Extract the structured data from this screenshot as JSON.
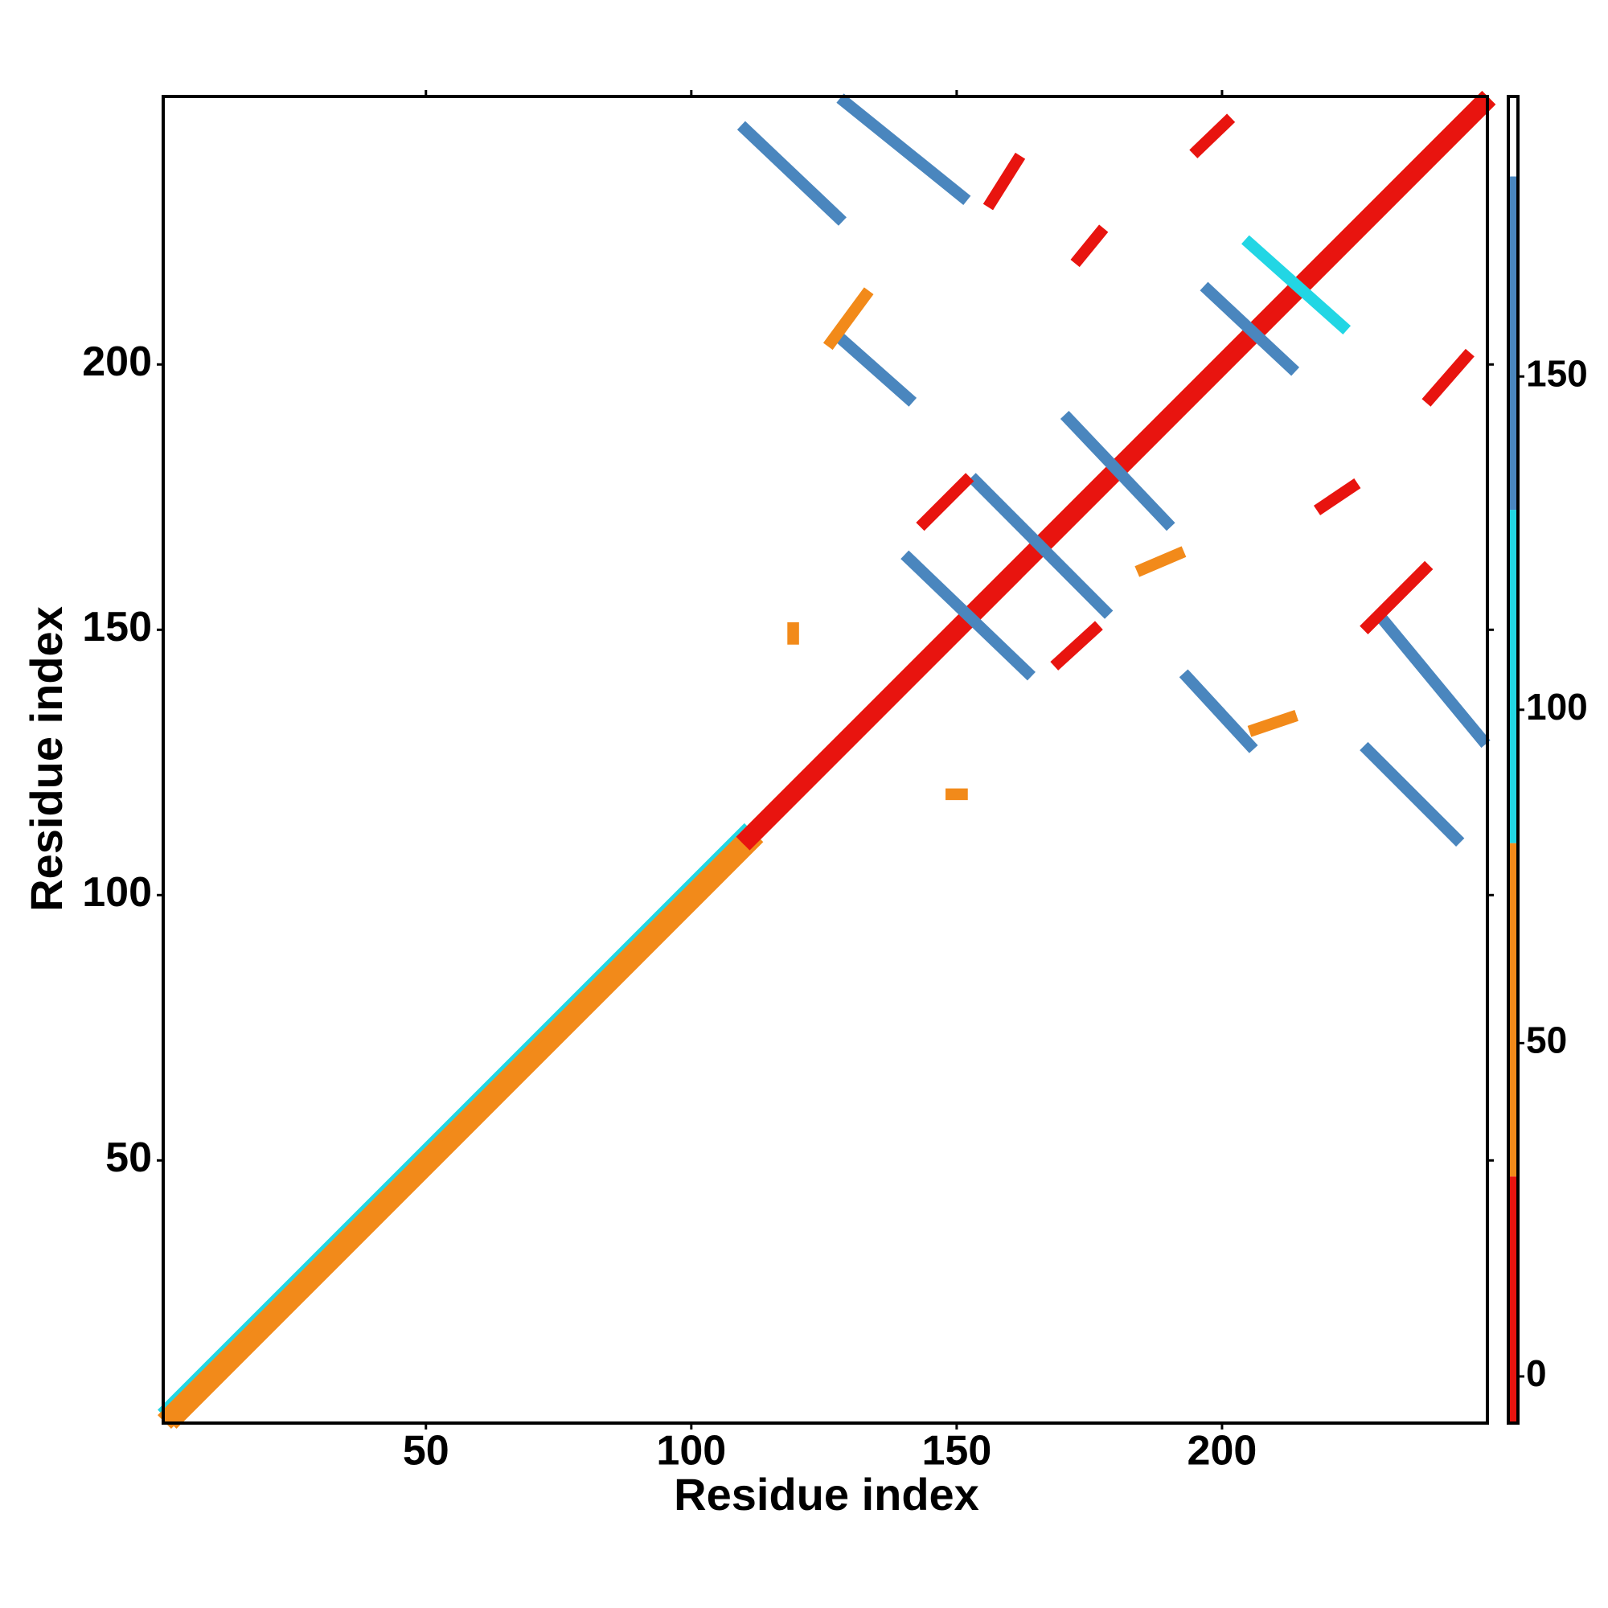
{
  "chart_data": {
    "type": "heatmap",
    "xlabel": "Residue index",
    "ylabel": "Residue index",
    "xlim": [
      0.5,
      250
    ],
    "ylim": [
      0.5,
      250.5
    ],
    "xticks": [
      50,
      100,
      150,
      200
    ],
    "yticks": [
      50,
      100,
      150,
      200
    ],
    "colorbar": {
      "lim": [
        -7,
        192
      ],
      "ticks": [
        0,
        50,
        100,
        150
      ],
      "bins": [
        {
          "from": -7,
          "to": 30,
          "color": "#e8140f"
        },
        {
          "from": 30,
          "to": 80,
          "color": "#f28a1a"
        },
        {
          "from": 80,
          "to": 130,
          "color": "#22d6e4"
        },
        {
          "from": 130,
          "to": 180,
          "color": "#4a86be"
        },
        {
          "from": 180,
          "to": 192,
          "color": "#ffffff"
        }
      ]
    },
    "segments": [
      {
        "x": [
          1,
          110
        ],
        "y": [
          3,
          112
        ],
        "value": 100
      },
      {
        "x": [
          3,
          112
        ],
        "y": [
          1,
          110
        ],
        "value": 60
      },
      {
        "x": [
          1,
          249
        ],
        "y": [
          2,
          250
        ],
        "value": 45
      },
      {
        "x": [
          2,
          250
        ],
        "y": [
          1,
          249
        ],
        "value": 45
      },
      {
        "x": [
          110,
          249
        ],
        "y": [
          111,
          250
        ],
        "value": 10
      },
      {
        "x": [
          111,
          250
        ],
        "y": [
          110,
          249
        ],
        "value": 10
      },
      {
        "x": [
          110.2,
          127.7
        ],
        "y": [
          244.3,
          227.7
        ],
        "value": 160
      },
      {
        "x": [
          128.9,
          151.1
        ],
        "y": [
          249.5,
          231.6
        ],
        "value": 160
      },
      {
        "x": [
          127.7,
          140.9
        ],
        "y": [
          205.3,
          193.6
        ],
        "value": 160
      },
      {
        "x": [
          197.4,
          213
        ],
        "y": [
          214,
          199.4
        ],
        "value": 160
      },
      {
        "x": [
          205.2,
          222.7
        ],
        "y": [
          222.8,
          207.2
        ],
        "value": 110
      },
      {
        "x": [
          171.1,
          189.6
        ],
        "y": [
          189.7,
          170.2
        ],
        "value": 160
      },
      {
        "x": [
          153.6,
          177.9
        ],
        "y": [
          178,
          153.6
        ],
        "value": 160
      },
      {
        "x": [
          141,
          163.3
        ],
        "y": [
          163.4,
          142
        ],
        "value": 160
      },
      {
        "x": [
          193.5,
          205.2
        ],
        "y": [
          141,
          128.3
        ],
        "value": 160
      },
      {
        "x": [
          230.5,
          249
        ],
        "y": [
          151.7,
          129.3
        ],
        "value": 160
      },
      {
        "x": [
          227.5,
          244.1
        ],
        "y": [
          127.3,
          110.7
        ],
        "value": 160
      },
      {
        "x": [
          195.4,
          200.9
        ],
        "y": [
          240.4,
          245.7
        ],
        "value": 15
      },
      {
        "x": [
          173,
          177
        ],
        "y": [
          219.9,
          224.8
        ],
        "value": 20
      },
      {
        "x": [
          126.4,
          132.8
        ],
        "y": [
          204.3,
          213
        ],
        "value": 45
      },
      {
        "x": [
          156.5,
          161.4
        ],
        "y": [
          230.6,
          238.4
        ],
        "value": 15
      },
      {
        "x": [
          239.2,
          246
        ],
        "y": [
          193.6,
          201.4
        ],
        "value": 20
      },
      {
        "x": [
          227.5,
          238.2
        ],
        "y": [
          150.7,
          161.4
        ],
        "value": 15
      },
      {
        "x": [
          143.9,
          151.7
        ],
        "y": [
          170.2,
          178
        ],
        "value": 15
      },
      {
        "x": [
          169.2,
          176
        ],
        "y": [
          143.9,
          150.1
        ],
        "value": 15
      },
      {
        "x": [
          206.2,
          213
        ],
        "y": [
          131.2,
          133.5
        ],
        "value": 40
      },
      {
        "x": [
          218.8,
          224.6
        ],
        "y": [
          173.1,
          177
        ],
        "value": 20
      },
      {
        "x": [
          185,
          191.8
        ],
        "y": [
          161.4,
          164.3
        ],
        "value": 50
      },
      {
        "x": [
          149,
          151
        ],
        "y": [
          119,
          119
        ],
        "value": 45
      },
      {
        "x": [
          119.2,
          119.2
        ],
        "y": [
          148.3,
          150.3
        ],
        "value": 45
      }
    ]
  }
}
